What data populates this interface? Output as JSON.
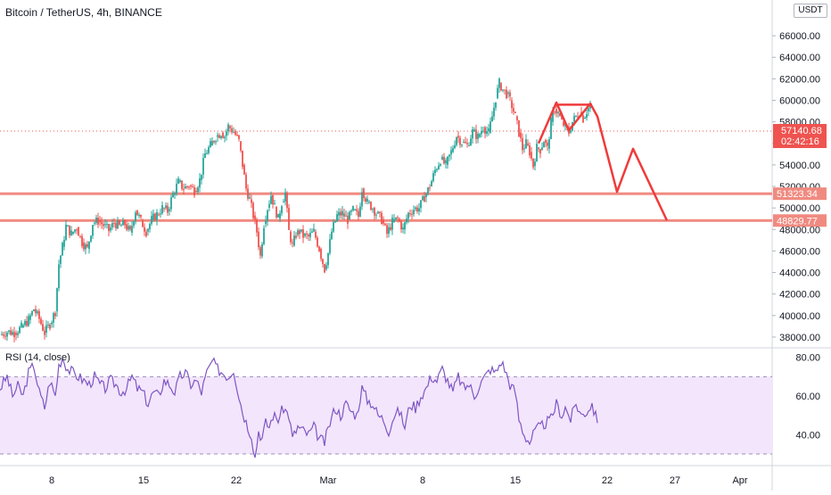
{
  "header": {
    "symbol_title": "Bitcoin / TetherUS, 4h, BINANCE",
    "currency": "USDT",
    "rsi_title": "RSI (14, close)"
  },
  "chart_data": [
    {
      "type": "candlestick",
      "title": "Bitcoin / TetherUS, 4h, BINANCE",
      "y_axis": {
        "ticks": [
          "38000.00",
          "40000.00",
          "42000.00",
          "44000.00",
          "46000.00",
          "48000.00",
          "50000.00",
          "52000.00",
          "54000.00",
          "56000.00",
          "58000.00",
          "60000.00",
          "62000.00",
          "64000.00",
          "66000.00"
        ],
        "ylim": [
          37000,
          67500
        ],
        "position": "right"
      },
      "x_axis": {
        "ticks": [
          "8",
          "15",
          "22",
          "Mar",
          "8",
          "15",
          "22",
          "27",
          "Apr"
        ]
      },
      "price_path_close": [
        [
          0,
          38200
        ],
        [
          8,
          38500
        ],
        [
          16,
          38400
        ],
        [
          24,
          38900
        ],
        [
          32,
          39600
        ],
        [
          38,
          40600
        ],
        [
          44,
          39700
        ],
        [
          50,
          38400
        ],
        [
          56,
          39200
        ],
        [
          62,
          40400
        ],
        [
          66,
          44800
        ],
        [
          70,
          46400
        ],
        [
          74,
          48300
        ],
        [
          80,
          47600
        ],
        [
          86,
          48200
        ],
        [
          92,
          46800
        ],
        [
          98,
          46200
        ],
        [
          104,
          48600
        ],
        [
          110,
          48800
        ],
        [
          116,
          48400
        ],
        [
          122,
          47900
        ],
        [
          128,
          48600
        ],
        [
          134,
          48300
        ],
        [
          140,
          48500
        ],
        [
          146,
          47700
        ],
        [
          152,
          49800
        ],
        [
          158,
          48800
        ],
        [
          164,
          47800
        ],
        [
          170,
          48900
        ],
        [
          176,
          49400
        ],
        [
          182,
          50000
        ],
        [
          188,
          49700
        ],
        [
          194,
          51300
        ],
        [
          200,
          52400
        ],
        [
          206,
          51800
        ],
        [
          212,
          52100
        ],
        [
          218,
          51600
        ],
        [
          224,
          52600
        ],
        [
          230,
          55000
        ],
        [
          236,
          55800
        ],
        [
          242,
          56600
        ],
        [
          248,
          57000
        ],
        [
          252,
          56700
        ],
        [
          256,
          57600
        ],
        [
          262,
          57100
        ],
        [
          268,
          56200
        ],
        [
          272,
          54000
        ],
        [
          276,
          51800
        ],
        [
          280,
          50800
        ],
        [
          284,
          49300
        ],
        [
          288,
          47800
        ],
        [
          292,
          45500
        ],
        [
          296,
          48500
        ],
        [
          300,
          50000
        ],
        [
          304,
          51200
        ],
        [
          308,
          50100
        ],
        [
          312,
          49000
        ],
        [
          316,
          50500
        ],
        [
          320,
          51400
        ],
        [
          324,
          47800
        ],
        [
          328,
          46500
        ],
        [
          332,
          47500
        ],
        [
          336,
          47800
        ],
        [
          340,
          47400
        ],
        [
          346,
          47300
        ],
        [
          352,
          47800
        ],
        [
          358,
          46200
        ],
        [
          364,
          44300
        ],
        [
          368,
          45800
        ],
        [
          372,
          47800
        ],
        [
          378,
          49300
        ],
        [
          384,
          49500
        ],
        [
          390,
          48900
        ],
        [
          396,
          49800
        ],
        [
          402,
          49200
        ],
        [
          406,
          51800
        ],
        [
          412,
          50500
        ],
        [
          418,
          50000
        ],
        [
          422,
          49500
        ],
        [
          428,
          48900
        ],
        [
          434,
          47600
        ],
        [
          440,
          48700
        ],
        [
          446,
          49000
        ],
        [
          452,
          48000
        ],
        [
          458,
          49500
        ],
        [
          464,
          49900
        ],
        [
          470,
          50000
        ],
        [
          476,
          51000
        ],
        [
          482,
          52000
        ],
        [
          488,
          53500
        ],
        [
          494,
          54500
        ],
        [
          500,
          54000
        ],
        [
          506,
          55200
        ],
        [
          512,
          56700
        ],
        [
          518,
          56100
        ],
        [
          524,
          55800
        ],
        [
          530,
          57100
        ],
        [
          536,
          56600
        ],
        [
          542,
          57500
        ],
        [
          548,
          57000
        ],
        [
          552,
          58500
        ],
        [
          556,
          60200
        ],
        [
          560,
          61600
        ],
        [
          564,
          61000
        ],
        [
          568,
          60600
        ],
        [
          572,
          60000
        ],
        [
          578,
          58500
        ],
        [
          582,
          57000
        ],
        [
          586,
          55500
        ],
        [
          590,
          56000
        ],
        [
          594,
          55200
        ],
        [
          598,
          53900
        ],
        [
          602,
          55600
        ],
        [
          606,
          55400
        ],
        [
          610,
          56300
        ],
        [
          614,
          55500
        ],
        [
          618,
          58000
        ],
        [
          622,
          59200
        ],
        [
          626,
          58800
        ],
        [
          630,
          58000
        ],
        [
          634,
          57500
        ],
        [
          638,
          57000
        ],
        [
          642,
          58000
        ],
        [
          646,
          58500
        ],
        [
          650,
          58900
        ],
        [
          654,
          58300
        ],
        [
          658,
          59000
        ],
        [
          662,
          59500
        ]
      ],
      "current_price": "57140.68",
      "countdown": "02:42:16",
      "current_price_dotted": 57140.68,
      "support_levels": [
        {
          "value": 51323.34,
          "label": "51323.34"
        },
        {
          "value": 48829.77,
          "label": "48829.77"
        }
      ],
      "annotations": {
        "flag_pattern": [
          [
            604,
            56000
          ],
          [
            624,
            59800
          ],
          [
            638,
            57200
          ],
          [
            662,
            59700
          ],
          [
            670,
            58500
          ],
          [
            692,
            51500
          ],
          [
            710,
            55500
          ],
          [
            748,
            48830
          ]
        ],
        "flag_box": [
          [
            622,
            59600
          ],
          [
            664,
            59600
          ]
        ],
        "color": "#ef3b3b"
      },
      "colors": {
        "up": "#26a69a",
        "down": "#ef5350",
        "support": "#f08a80",
        "accent": "#ef3b3b"
      }
    },
    {
      "type": "line",
      "title": "RSI (14, close)",
      "y_axis": {
        "ticks": [
          "40.00",
          "60.00",
          "80.00"
        ],
        "ylim": [
          24,
          84
        ]
      },
      "band": [
        30,
        70
      ],
      "values": [
        [
          0,
          64
        ],
        [
          8,
          70
        ],
        [
          14,
          60
        ],
        [
          20,
          65
        ],
        [
          26,
          60
        ],
        [
          32,
          72
        ],
        [
          38,
          76
        ],
        [
          44,
          62
        ],
        [
          50,
          54
        ],
        [
          56,
          68
        ],
        [
          62,
          60
        ],
        [
          66,
          76
        ],
        [
          70,
          80
        ],
        [
          76,
          74
        ],
        [
          82,
          72
        ],
        [
          88,
          70
        ],
        [
          94,
          68
        ],
        [
          100,
          66
        ],
        [
          106,
          70
        ],
        [
          112,
          66
        ],
        [
          118,
          64
        ],
        [
          124,
          68
        ],
        [
          130,
          66
        ],
        [
          136,
          62
        ],
        [
          142,
          64
        ],
        [
          148,
          70
        ],
        [
          154,
          64
        ],
        [
          160,
          62
        ],
        [
          166,
          56
        ],
        [
          172,
          62
        ],
        [
          178,
          60
        ],
        [
          184,
          68
        ],
        [
          190,
          66
        ],
        [
          196,
          62
        ],
        [
          202,
          70
        ],
        [
          208,
          72
        ],
        [
          214,
          66
        ],
        [
          220,
          68
        ],
        [
          226,
          62
        ],
        [
          232,
          72
        ],
        [
          238,
          78
        ],
        [
          244,
          74
        ],
        [
          250,
          72
        ],
        [
          256,
          70
        ],
        [
          262,
          74
        ],
        [
          268,
          60
        ],
        [
          272,
          52
        ],
        [
          278,
          44
        ],
        [
          282,
          40
        ],
        [
          286,
          28
        ],
        [
          290,
          42
        ],
        [
          294,
          38
        ],
        [
          298,
          46
        ],
        [
          302,
          44
        ],
        [
          306,
          50
        ],
        [
          312,
          48
        ],
        [
          318,
          54
        ],
        [
          324,
          50
        ],
        [
          328,
          38
        ],
        [
          334,
          44
        ],
        [
          340,
          42
        ],
        [
          346,
          40
        ],
        [
          352,
          44
        ],
        [
          358,
          38
        ],
        [
          364,
          36
        ],
        [
          370,
          46
        ],
        [
          376,
          54
        ],
        [
          382,
          50
        ],
        [
          388,
          56
        ],
        [
          394,
          52
        ],
        [
          400,
          50
        ],
        [
          406,
          64
        ],
        [
          412,
          58
        ],
        [
          418,
          56
        ],
        [
          424,
          50
        ],
        [
          430,
          48
        ],
        [
          436,
          42
        ],
        [
          442,
          50
        ],
        [
          448,
          52
        ],
        [
          454,
          44
        ],
        [
          460,
          56
        ],
        [
          466,
          54
        ],
        [
          472,
          60
        ],
        [
          478,
          64
        ],
        [
          484,
          70
        ],
        [
          490,
          68
        ],
        [
          496,
          74
        ],
        [
          502,
          68
        ],
        [
          508,
          62
        ],
        [
          514,
          70
        ],
        [
          520,
          64
        ],
        [
          526,
          66
        ],
        [
          532,
          60
        ],
        [
          538,
          66
        ],
        [
          544,
          70
        ],
        [
          550,
          74
        ],
        [
          556,
          72
        ],
        [
          562,
          78
        ],
        [
          566,
          74
        ],
        [
          572,
          66
        ],
        [
          578,
          62
        ],
        [
          582,
          48
        ],
        [
          588,
          40
        ],
        [
          594,
          36
        ],
        [
          600,
          42
        ],
        [
          606,
          44
        ],
        [
          612,
          46
        ],
        [
          618,
          48
        ],
        [
          624,
          56
        ],
        [
          630,
          50
        ],
        [
          634,
          54
        ],
        [
          640,
          48
        ],
        [
          646,
          56
        ],
        [
          652,
          50
        ],
        [
          658,
          52
        ],
        [
          664,
          56
        ],
        [
          670,
          46
        ]
      ],
      "color": "#7e57c2",
      "band_fill": "#f3e5fc"
    }
  ],
  "x_tick_labels": [
    "8",
    "15",
    "22",
    "Mar",
    "8",
    "15",
    "22",
    "27",
    "Apr"
  ]
}
